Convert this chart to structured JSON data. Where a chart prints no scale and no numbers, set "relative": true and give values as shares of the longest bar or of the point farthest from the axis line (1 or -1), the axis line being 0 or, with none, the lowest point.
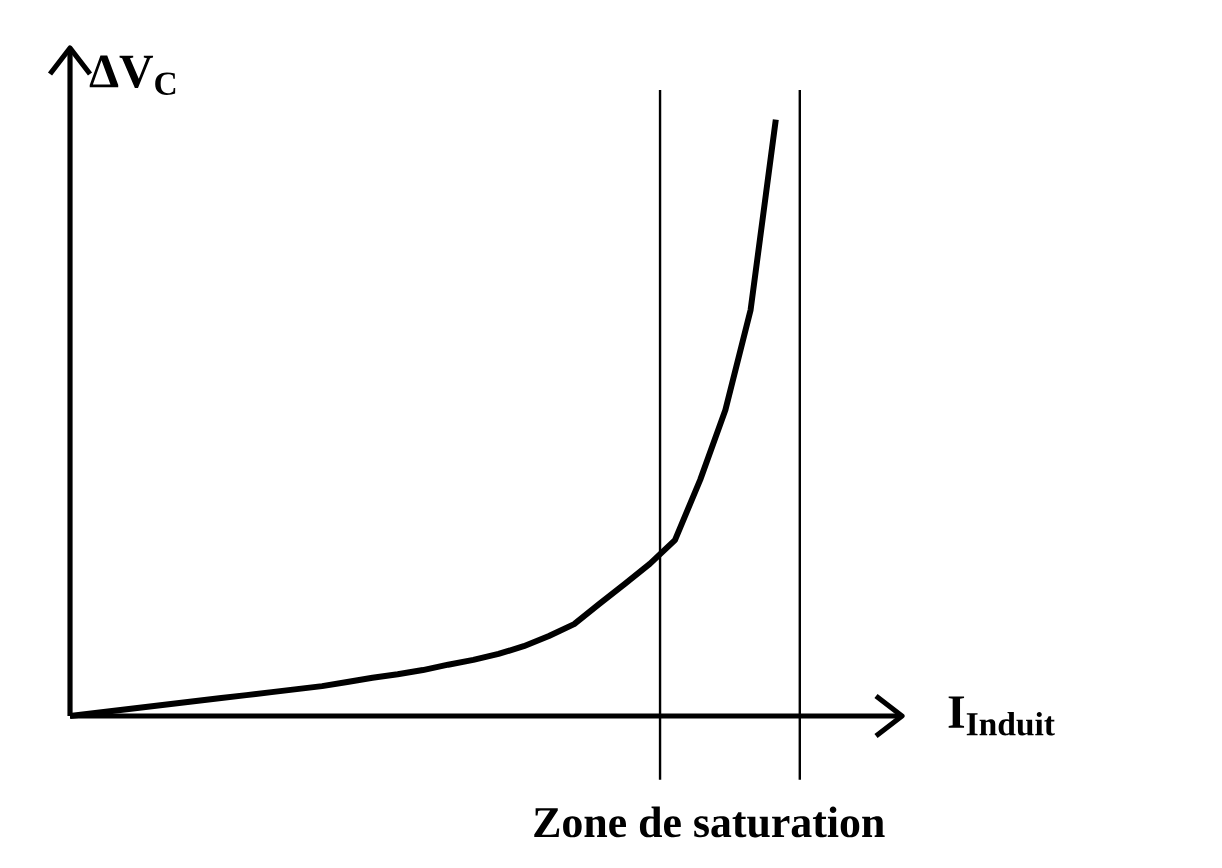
{
  "chart_data": {
    "type": "line",
    "relative": true,
    "xlabel": "I$_{Induit}$",
    "ylabel": "ΔV$_{C}$",
    "categories": [
      null,
      null,
      null,
      null,
      null,
      null,
      null,
      null,
      null,
      null,
      null,
      null,
      null,
      null,
      null,
      null,
      null,
      null,
      null,
      null,
      null,
      null,
      null,
      null,
      null,
      null,
      null,
      null,
      null
    ],
    "series": [
      {
        "color": "#000000",
        "values": [
          0,
          0.005,
          0.01,
          0.015,
          0.02,
          0.025,
          0.03,
          0.035,
          0.04,
          0.045,
          0.05,
          0.057,
          0.064,
          0.07,
          0.077,
          0.086,
          0.094,
          0.104,
          0.117,
          0.134,
          0.154,
          0.188,
          0.221,
          0.255,
          0.295,
          0.396,
          0.513,
          0.681,
          1.0
        ]
      }
    ],
    "annotations": [
      "Zone de saturation"
    ]
  }
}
